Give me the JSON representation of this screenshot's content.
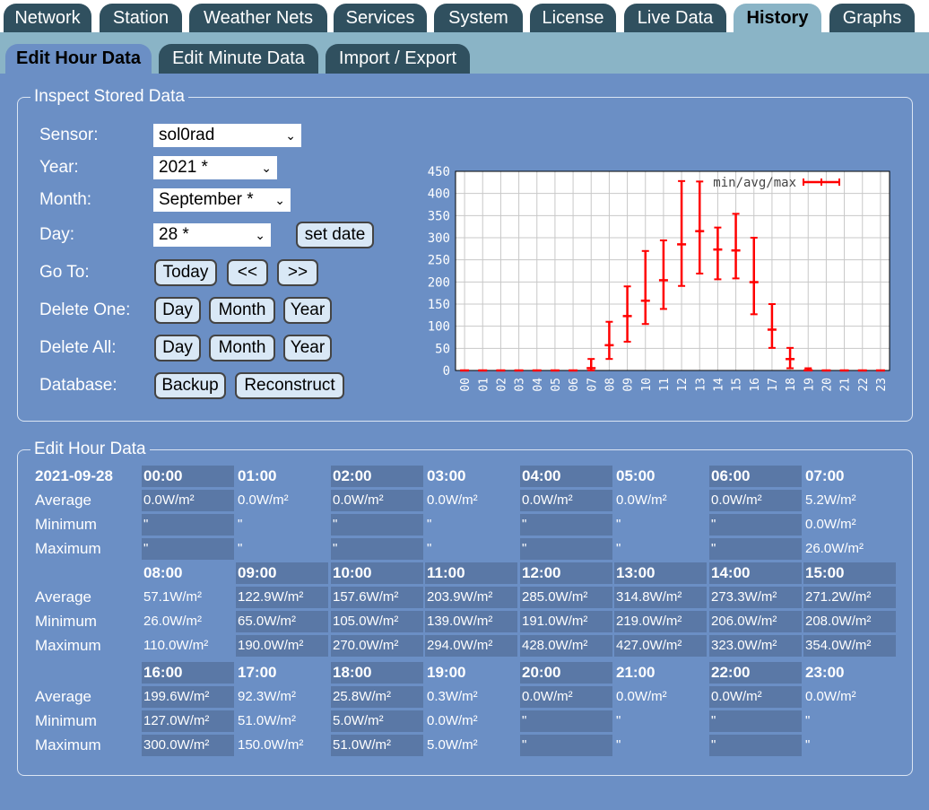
{
  "tabs": [
    "Network",
    "Station",
    "Weather Nets",
    "Services",
    "System",
    "License",
    "Live Data",
    "History",
    "Graphs"
  ],
  "active_tab": 7,
  "subtabs": [
    "Edit Hour Data",
    "Edit Minute Data",
    "Import / Export"
  ],
  "active_subtab": 0,
  "inspect": {
    "legend": "Inspect Stored Data",
    "sensor_label": "Sensor:",
    "sensor_value": "sol0rad",
    "year_label": "Year:",
    "year_value": "2021 *",
    "month_label": "Month:",
    "month_value": "September *",
    "day_label": "Day:",
    "day_value": "28 *",
    "set_date": "set date",
    "goto_label": "Go To:",
    "today": "Today",
    "prev": "<<",
    "next": ">>",
    "delete_one_label": "Delete One:",
    "delete_all_label": "Delete All:",
    "day_btn": "Day",
    "month_btn": "Month",
    "year_btn": "Year",
    "database_label": "Database:",
    "backup": "Backup",
    "reconstruct": "Reconstruct"
  },
  "chart_data": {
    "type": "errorbar",
    "legend": "min/avg/max",
    "series_color": "#ff0000",
    "ylim": [
      0,
      450
    ],
    "yticks": [
      0,
      50,
      100,
      150,
      200,
      250,
      300,
      350,
      400,
      450
    ],
    "hours": [
      "00",
      "01",
      "02",
      "03",
      "04",
      "05",
      "06",
      "07",
      "08",
      "09",
      "10",
      "11",
      "12",
      "13",
      "14",
      "15",
      "16",
      "17",
      "18",
      "19",
      "20",
      "21",
      "22",
      "23"
    ],
    "avg": [
      0,
      0,
      0,
      0,
      0,
      0,
      0,
      5.2,
      57.1,
      122.9,
      157.6,
      203.9,
      285.0,
      314.8,
      273.3,
      271.2,
      199.6,
      92.3,
      25.8,
      0.3,
      0,
      0,
      0,
      0
    ],
    "min": [
      0,
      0,
      0,
      0,
      0,
      0,
      0,
      0,
      26,
      65,
      105,
      139,
      191,
      219,
      206,
      208,
      127,
      51,
      5,
      0,
      0,
      0,
      0,
      0
    ],
    "max": [
      0,
      0,
      0,
      0,
      0,
      0,
      0,
      26,
      110,
      190,
      270,
      294,
      428,
      427,
      323,
      354,
      300,
      150,
      51,
      5,
      0,
      0,
      0,
      0
    ]
  },
  "edit": {
    "legend": "Edit Hour Data",
    "date": "2021-09-28",
    "row_labels": [
      "Average",
      "Minimum",
      "Maximum"
    ],
    "hours": [
      "00:00",
      "01:00",
      "02:00",
      "03:00",
      "04:00",
      "05:00",
      "06:00",
      "07:00",
      "08:00",
      "09:00",
      "10:00",
      "11:00",
      "12:00",
      "13:00",
      "14:00",
      "15:00",
      "16:00",
      "17:00",
      "18:00",
      "19:00",
      "20:00",
      "21:00",
      "22:00",
      "23:00"
    ],
    "average": [
      "0.0W/m²",
      "0.0W/m²",
      "0.0W/m²",
      "0.0W/m²",
      "0.0W/m²",
      "0.0W/m²",
      "0.0W/m²",
      "5.2W/m²",
      "57.1W/m²",
      "122.9W/m²",
      "157.6W/m²",
      "203.9W/m²",
      "285.0W/m²",
      "314.8W/m²",
      "273.3W/m²",
      "271.2W/m²",
      "199.6W/m²",
      "92.3W/m²",
      "25.8W/m²",
      "0.3W/m²",
      "0.0W/m²",
      "0.0W/m²",
      "0.0W/m²",
      "0.0W/m²"
    ],
    "minimum": [
      "\"",
      "\"",
      "\"",
      "\"",
      "\"",
      "\"",
      "\"",
      "0.0W/m²",
      "26.0W/m²",
      "65.0W/m²",
      "105.0W/m²",
      "139.0W/m²",
      "191.0W/m²",
      "219.0W/m²",
      "206.0W/m²",
      "208.0W/m²",
      "127.0W/m²",
      "51.0W/m²",
      "5.0W/m²",
      "0.0W/m²",
      "\"",
      "\"",
      "\"",
      "\""
    ],
    "maximum": [
      "\"",
      "\"",
      "\"",
      "\"",
      "\"",
      "\"",
      "\"",
      "26.0W/m²",
      "110.0W/m²",
      "190.0W/m²",
      "270.0W/m²",
      "294.0W/m²",
      "428.0W/m²",
      "427.0W/m²",
      "323.0W/m²",
      "354.0W/m²",
      "300.0W/m²",
      "150.0W/m²",
      "51.0W/m²",
      "5.0W/m²",
      "\"",
      "\"",
      "\"",
      "\""
    ]
  }
}
